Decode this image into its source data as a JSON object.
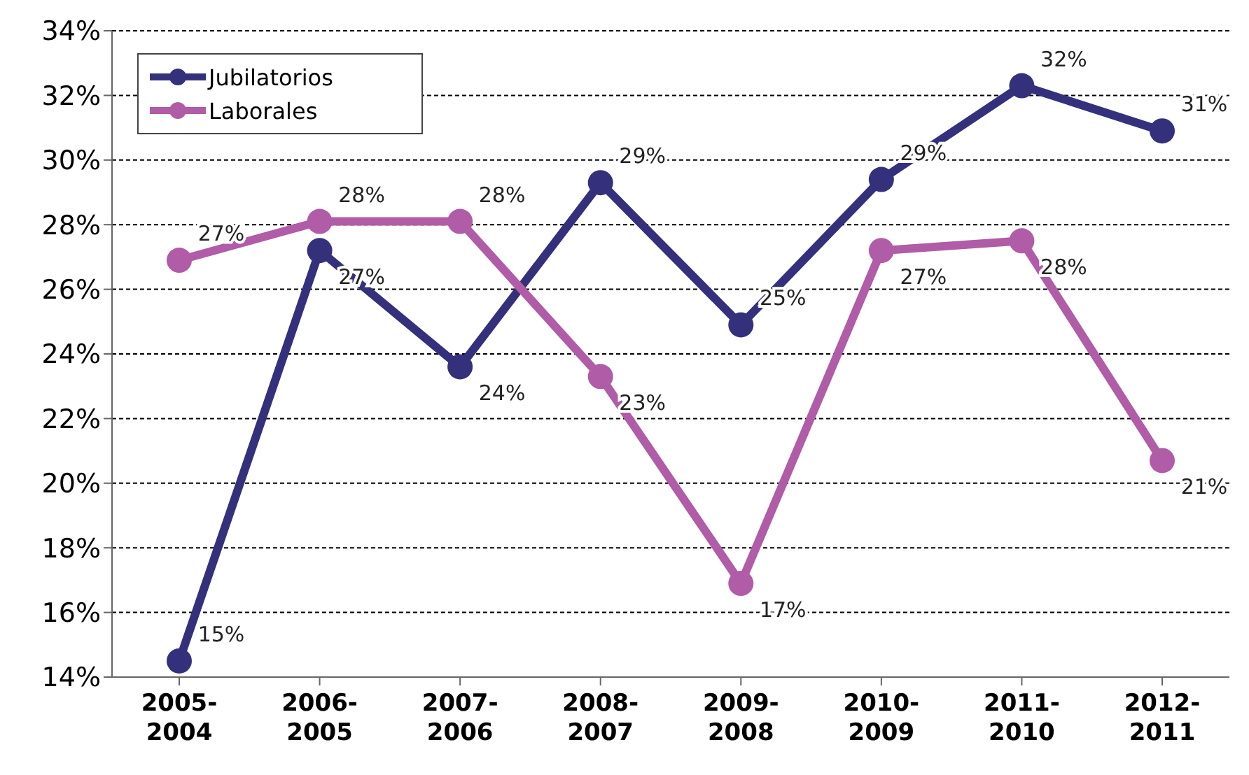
{
  "chart_data": {
    "type": "line",
    "categories": [
      "2005-2004",
      "2006-2005",
      "2007-2006",
      "2008-2007",
      "2009-2008",
      "2010-2009",
      "2011-2010",
      "2012-2011"
    ],
    "series": [
      {
        "name": "Jubilatorios",
        "color": "#34307c",
        "values": [
          14.5,
          27.2,
          23.6,
          29.3,
          24.9,
          29.4,
          32.3,
          30.9
        ],
        "value_labels": [
          "15%",
          "27%",
          "24%",
          "29%",
          "25%",
          "29%",
          "32%",
          "31%"
        ]
      },
      {
        "name": "Laborales",
        "color": "#b05ca6",
        "values": [
          26.9,
          28.1,
          28.1,
          23.3,
          16.9,
          27.2,
          27.5,
          20.7
        ],
        "value_labels": [
          "27%",
          "28%",
          "28%",
          "23%",
          "17%",
          "27%",
          "28%",
          "21%"
        ]
      }
    ],
    "ylim": [
      14,
      34
    ],
    "yticks": [
      {
        "value": 14,
        "label": "14%"
      },
      {
        "value": 16,
        "label": "16%"
      },
      {
        "value": 18,
        "label": "18%"
      },
      {
        "value": 20,
        "label": "20%"
      },
      {
        "value": 22,
        "label": "22%"
      },
      {
        "value": 24,
        "label": "24%"
      },
      {
        "value": 26,
        "label": "26%"
      },
      {
        "value": 28,
        "label": "28%"
      },
      {
        "value": 30,
        "label": "30%"
      },
      {
        "value": 32,
        "label": "32%"
      },
      {
        "value": 34,
        "label": "34%"
      }
    ],
    "grid": "y",
    "legend": "top left",
    "marker": "circle",
    "line_style": "solid"
  }
}
